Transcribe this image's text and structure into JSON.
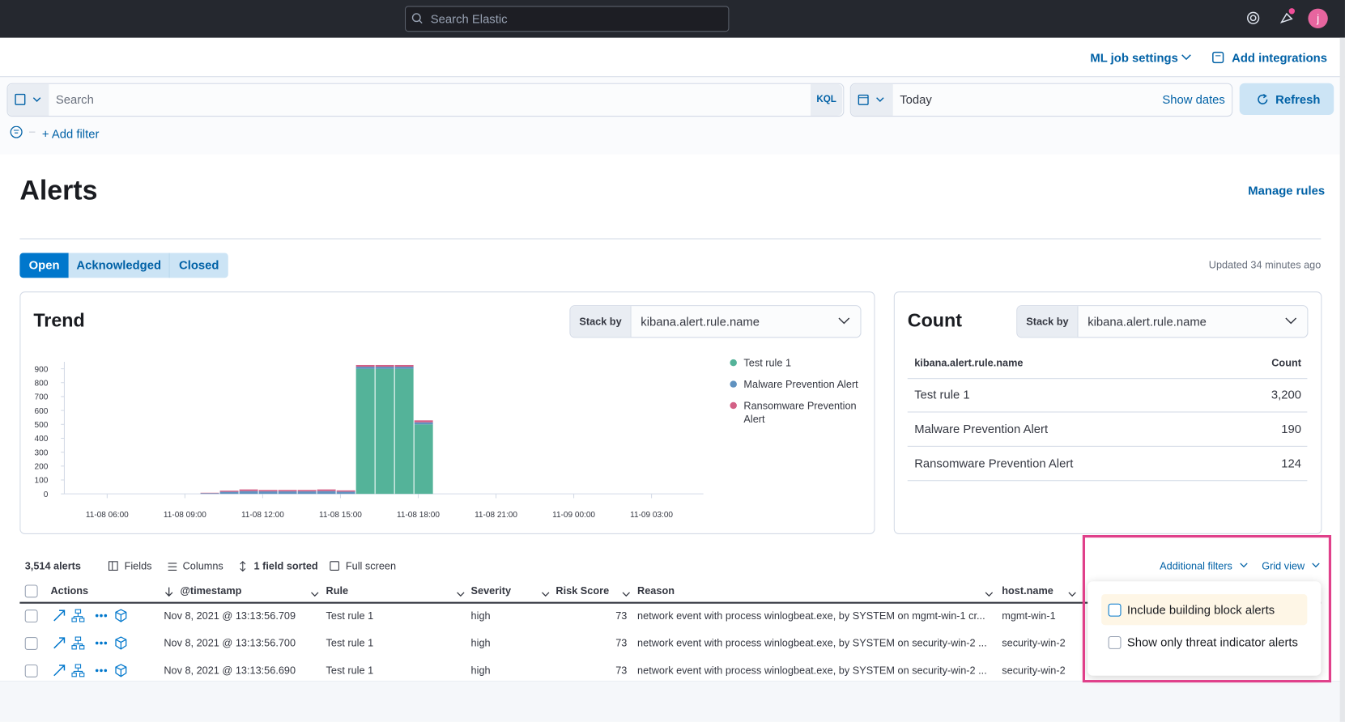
{
  "header": {
    "search": "Search Elastic",
    "avatar": "j"
  },
  "nav": {
    "ml_job_settings": "ML job settings",
    "add_integrations": "Add integrations"
  },
  "query_bar": {
    "search": "Search",
    "language": "KQL",
    "date": "Today",
    "show_dates": "Show dates",
    "refresh": "Refresh",
    "add_filter": "+ Add filter"
  },
  "page": {
    "title": "Alerts",
    "manage_rules": "Manage rules",
    "tabs": [
      "Open",
      "Acknowledged",
      "Closed"
    ],
    "updated": "Updated 34 minutes ago"
  },
  "trend": {
    "title": "Trend",
    "stack_by_label": "Stack by",
    "stack_by_value": "kibana.alert.rule.name"
  },
  "chart_data": {
    "type": "bar",
    "stacked": true,
    "x": [
      "11-08 09:36",
      "11-08 10:21",
      "11-08 11:06",
      "11-08 11:51",
      "11-08 12:36",
      "11-08 13:21",
      "11-08 14:06",
      "11-08 14:51",
      "11-08 15:36",
      "11-08 16:21",
      "11-08 17:06",
      "11-08 17:51"
    ],
    "xlim": [
      "11-08 04:30",
      "11-09 05:00"
    ],
    "xticks": [
      "11-08 06:00",
      "11-08 09:00",
      "11-08 12:00",
      "11-08 15:00",
      "11-08 18:00",
      "11-08 21:00",
      "11-09 00:00",
      "11-09 03:00"
    ],
    "ylim": [
      0,
      950
    ],
    "yticks": [
      0,
      100,
      200,
      300,
      400,
      500,
      600,
      700,
      800,
      900
    ],
    "legend": "right",
    "series": [
      {
        "name": "Test rule 1",
        "color": "#54b399",
        "values": [
          0,
          0,
          0,
          0,
          0,
          0,
          0,
          0,
          900,
          900,
          900,
          500
        ]
      },
      {
        "name": "Malware Prevention Alert",
        "color": "#6092c0",
        "values": [
          5,
          15,
          20,
          18,
          18,
          18,
          20,
          16,
          15,
          15,
          15,
          15
        ]
      },
      {
        "name": "Ransomware Prevention Alert",
        "color": "#d36086",
        "values": [
          3,
          8,
          12,
          10,
          10,
          10,
          12,
          9,
          12,
          12,
          12,
          14
        ]
      }
    ]
  },
  "count": {
    "title": "Count",
    "stack_by_label": "Stack by",
    "stack_by_value": "kibana.alert.rule.name",
    "columns": [
      "kibana.alert.rule.name",
      "Count"
    ],
    "rows": [
      [
        "Test rule 1",
        "3,200"
      ],
      [
        "Malware Prevention Alert",
        "190"
      ],
      [
        "Ransomware Prevention Alert",
        "124"
      ]
    ]
  },
  "alerts_table": {
    "count": "3,514 alerts",
    "toolbar": [
      "Fields",
      "Columns",
      "1 field sorted",
      "Full screen"
    ],
    "columns": [
      "Actions",
      "@timestamp",
      "Rule",
      "Severity",
      "Risk Score",
      "Reason",
      "host.name"
    ],
    "rows": [
      [
        "Nov 8, 2021 @ 13:13:56.709",
        "Test rule 1",
        "high",
        73,
        "network event with process winlogbeat.exe, by SYSTEM on mgmt-win-1 cr...",
        "mgmt-win-1"
      ],
      [
        "Nov 8, 2021 @ 13:13:56.700",
        "Test rule 1",
        "high",
        73,
        "network event with process winlogbeat.exe, by SYSTEM on security-win-2 ...",
        "security-win-2"
      ],
      [
        "Nov 8, 2021 @ 13:13:56.690",
        "Test rule 1",
        "high",
        73,
        "network event with process winlogbeat.exe, by SYSTEM on security-win-2 ...",
        "security-win-2"
      ]
    ]
  },
  "popover": {
    "additional_filters": "Additional filters",
    "grid_view": "Grid view",
    "options": [
      "Include building block alerts",
      "Show only threat indicator alerts"
    ]
  }
}
